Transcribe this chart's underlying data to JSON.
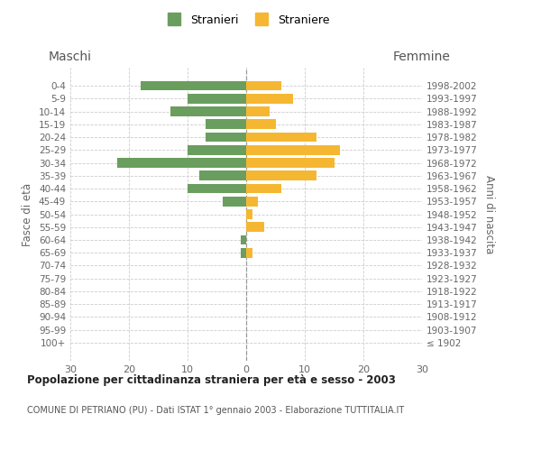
{
  "age_groups": [
    "100+",
    "95-99",
    "90-94",
    "85-89",
    "80-84",
    "75-79",
    "70-74",
    "65-69",
    "60-64",
    "55-59",
    "50-54",
    "45-49",
    "40-44",
    "35-39",
    "30-34",
    "25-29",
    "20-24",
    "15-19",
    "10-14",
    "5-9",
    "0-4"
  ],
  "birth_years": [
    "≤ 1902",
    "1903-1907",
    "1908-1912",
    "1913-1917",
    "1918-1922",
    "1923-1927",
    "1928-1932",
    "1933-1937",
    "1938-1942",
    "1943-1947",
    "1948-1952",
    "1953-1957",
    "1958-1962",
    "1963-1967",
    "1968-1972",
    "1973-1977",
    "1978-1982",
    "1983-1987",
    "1988-1992",
    "1993-1997",
    "1998-2002"
  ],
  "males": [
    0,
    0,
    0,
    0,
    0,
    0,
    0,
    1,
    1,
    0,
    0,
    4,
    10,
    8,
    22,
    10,
    7,
    7,
    13,
    10,
    18
  ],
  "females": [
    0,
    0,
    0,
    0,
    0,
    0,
    0,
    1,
    0,
    3,
    1,
    2,
    6,
    12,
    15,
    16,
    12,
    5,
    4,
    8,
    6
  ],
  "male_color": "#6a9e5e",
  "female_color": "#f5b731",
  "xlim": 30,
  "title": "Popolazione per cittadinanza straniera per età e sesso - 2003",
  "subtitle": "COMUNE DI PETRIANO (PU) - Dati ISTAT 1° gennaio 2003 - Elaborazione TUTTITALIA.IT",
  "ylabel_left": "Fasce di età",
  "ylabel_right": "Anni di nascita",
  "xlabel_left": "Maschi",
  "xlabel_right": "Femmine",
  "legend_stranieri": "Stranieri",
  "legend_straniere": "Straniere",
  "bg_color": "#ffffff",
  "grid_color": "#cccccc"
}
